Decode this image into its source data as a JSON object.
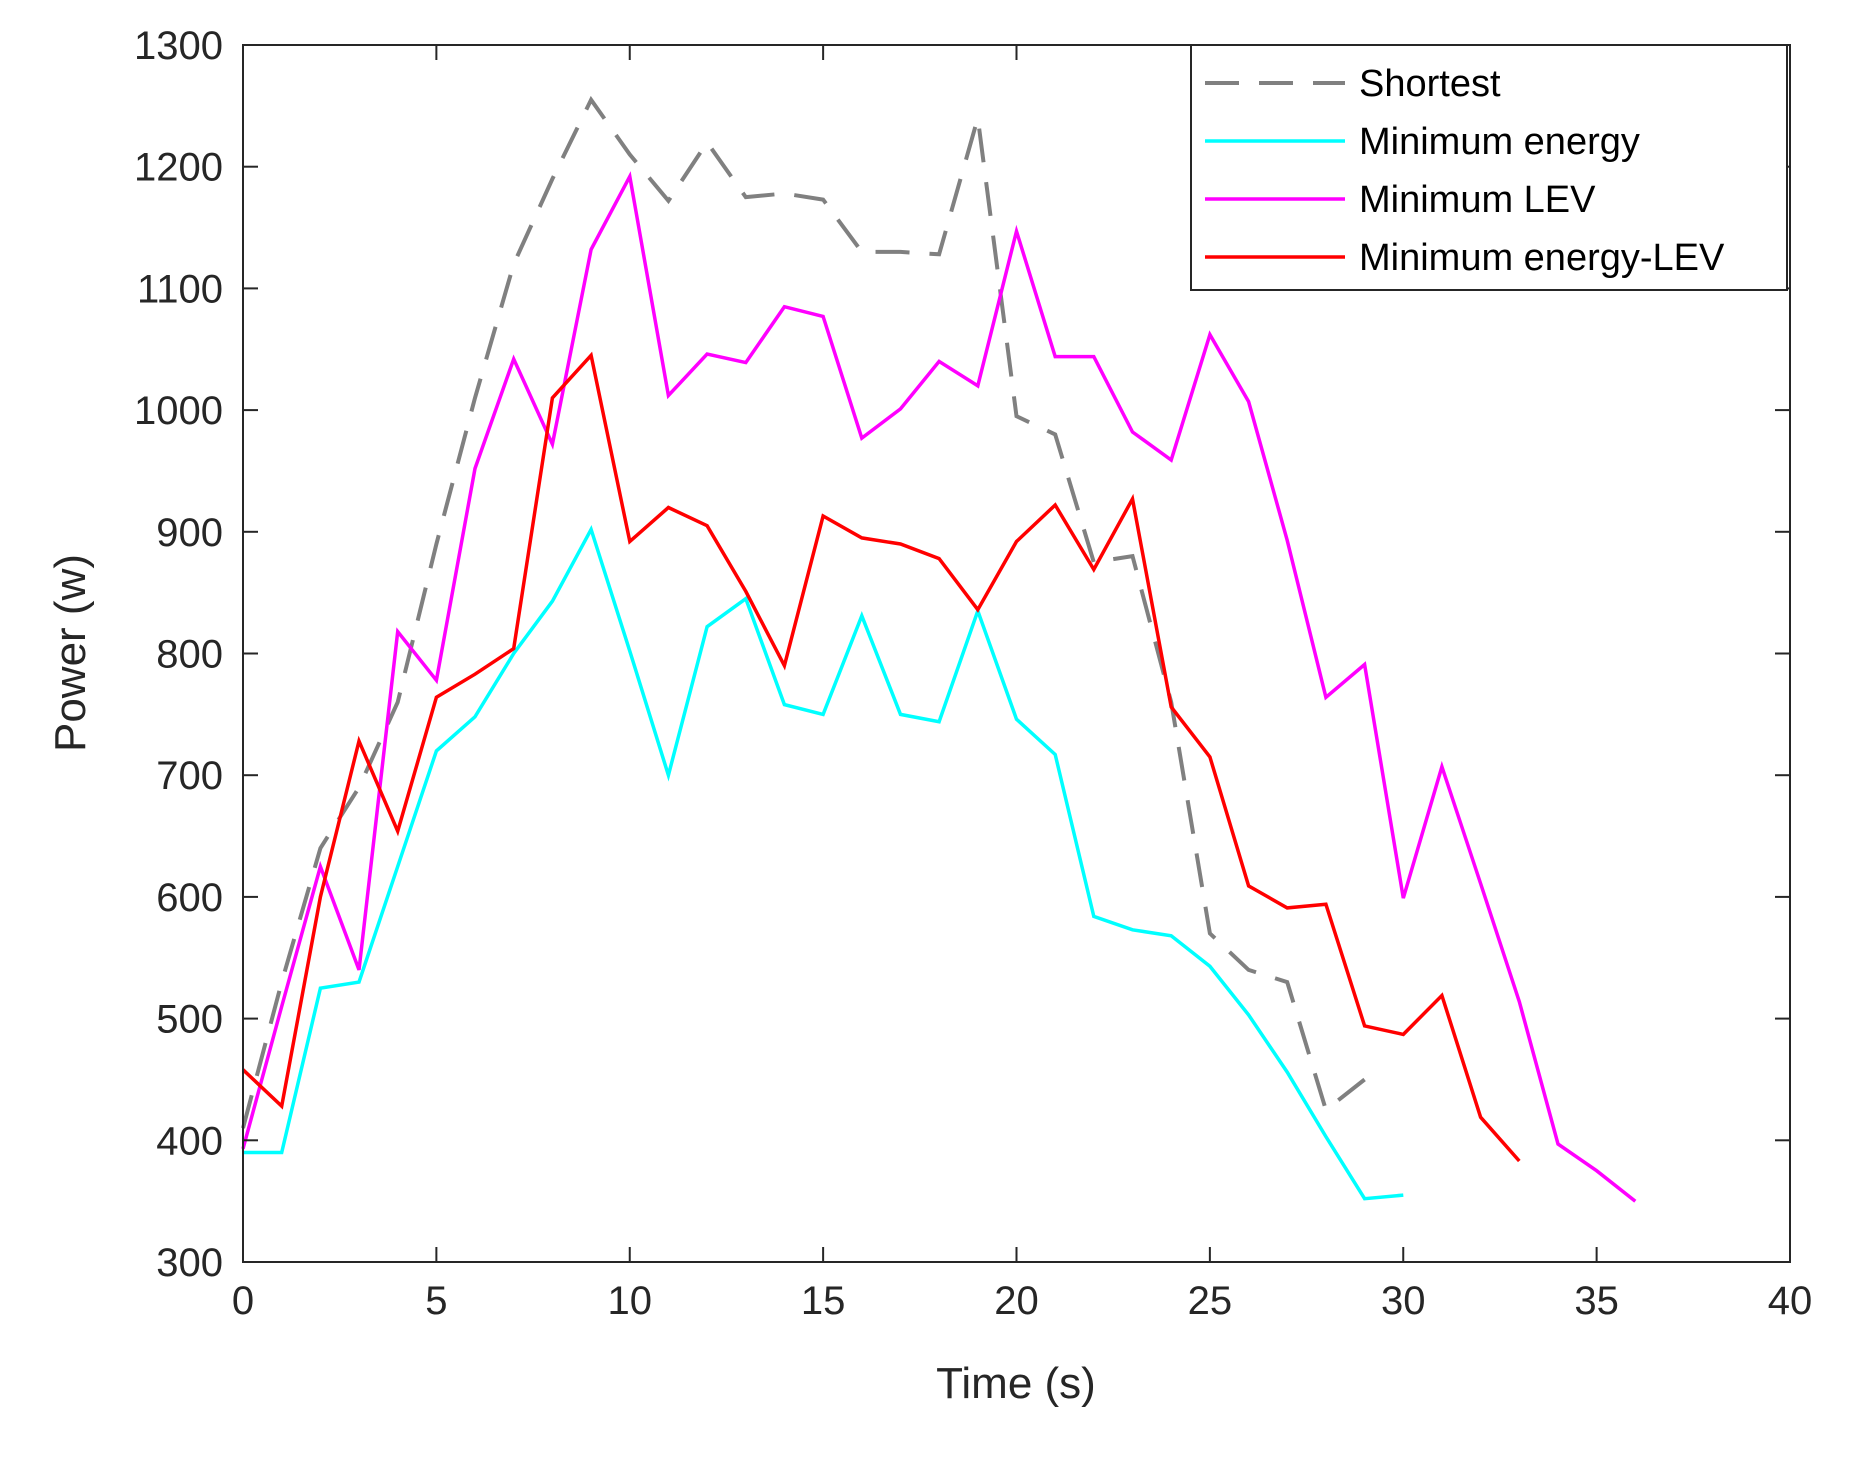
{
  "chart_data": {
    "type": "line",
    "title": "",
    "xlabel": "Time (s)",
    "ylabel": "Power (w)",
    "xlim": [
      0,
      40
    ],
    "ylim": [
      300,
      1300
    ],
    "xticks": [
      0,
      5,
      10,
      15,
      20,
      25,
      30,
      35,
      40
    ],
    "yticks": [
      300,
      400,
      500,
      600,
      700,
      800,
      900,
      1000,
      1100,
      1200,
      1300
    ],
    "grid": false,
    "legend_position": "top-right",
    "series": [
      {
        "name": "Shortest",
        "color": "#808080",
        "style": "dashed",
        "x": [
          0,
          1,
          2,
          3,
          4,
          5,
          6,
          7,
          8,
          9,
          10,
          11,
          12,
          13,
          14,
          15,
          16,
          17,
          18,
          19,
          20,
          21,
          22,
          23,
          24,
          25,
          26,
          27,
          28,
          29
        ],
        "y": [
          410,
          530,
          640,
          690,
          760,
          890,
          1010,
          1120,
          1190,
          1255,
          1210,
          1172,
          1220,
          1175,
          1178,
          1173,
          1130,
          1130,
          1128,
          1240,
          995,
          980,
          875,
          880,
          760,
          570,
          540,
          530,
          425,
          450
        ]
      },
      {
        "name": "Minimum energy",
        "color": "#00FFFF",
        "style": "solid",
        "x": [
          0,
          1,
          2,
          3,
          4,
          5,
          6,
          7,
          8,
          9,
          10,
          11,
          12,
          13,
          14,
          15,
          16,
          17,
          18,
          19,
          20,
          21,
          22,
          23,
          24,
          25,
          26,
          27,
          28,
          29,
          30
        ],
        "y": [
          390,
          390,
          525,
          530,
          625,
          720,
          748,
          800,
          843,
          902,
          802,
          700,
          822,
          845,
          758,
          750,
          831,
          750,
          744,
          835,
          746,
          717,
          584,
          573,
          568,
          543,
          503,
          456,
          403,
          352,
          355
        ]
      },
      {
        "name": "Minimum LEV",
        "color": "#FF00FF",
        "style": "solid",
        "x": [
          0,
          1,
          2,
          3,
          4,
          5,
          6,
          7,
          8,
          9,
          10,
          11,
          12,
          13,
          14,
          15,
          16,
          17,
          18,
          19,
          20,
          21,
          22,
          23,
          24,
          25,
          26,
          27,
          28,
          29,
          30,
          31,
          32,
          33,
          34,
          35,
          36
        ],
        "y": [
          393,
          510,
          625,
          540,
          818,
          778,
          952,
          1042,
          972,
          1132,
          1192,
          1012,
          1046,
          1039,
          1085,
          1077,
          977,
          1001,
          1040,
          1020,
          1147,
          1044,
          1044,
          982,
          959,
          1062,
          1007,
          893,
          764,
          791,
          599,
          707,
          611,
          514,
          397,
          375,
          350
        ]
      },
      {
        "name": "Minimum energy-LEV",
        "color": "#FF0000",
        "style": "solid",
        "x": [
          0,
          1,
          2,
          3,
          4,
          5,
          6,
          7,
          8,
          9,
          10,
          11,
          12,
          13,
          14,
          15,
          16,
          17,
          18,
          19,
          20,
          21,
          22,
          23,
          24,
          25,
          26,
          27,
          28,
          29,
          30,
          31,
          32,
          33
        ],
        "y": [
          458,
          428,
          600,
          728,
          654,
          764,
          783,
          804,
          1010,
          1045,
          892,
          920,
          905,
          851,
          790,
          913,
          895,
          890,
          878,
          836,
          892,
          922,
          869,
          927,
          756,
          715,
          609,
          591,
          594,
          494,
          487,
          519,
          419,
          383
        ]
      }
    ]
  }
}
